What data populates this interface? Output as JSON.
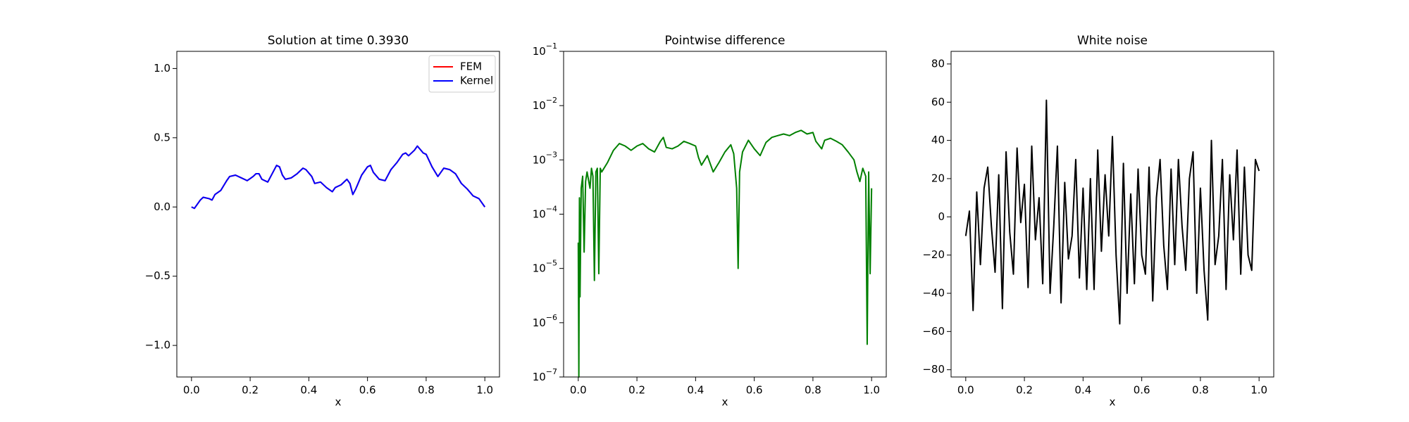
{
  "chart_data": [
    {
      "type": "line",
      "title": "Solution at time 0.3930",
      "xlabel": "x",
      "legend": "upper right",
      "x": [
        0,
        0.01,
        0.03,
        0.04,
        0.06,
        0.07,
        0.08,
        0.1,
        0.12,
        0.13,
        0.15,
        0.17,
        0.19,
        0.21,
        0.22,
        0.23,
        0.24,
        0.26,
        0.27,
        0.29,
        0.3,
        0.31,
        0.32,
        0.34,
        0.36,
        0.38,
        0.39,
        0.41,
        0.42,
        0.44,
        0.46,
        0.48,
        0.49,
        0.51,
        0.53,
        0.54,
        0.55,
        0.56,
        0.58,
        0.6,
        0.61,
        0.62,
        0.64,
        0.66,
        0.68,
        0.7,
        0.72,
        0.73,
        0.74,
        0.76,
        0.77,
        0.79,
        0.8,
        0.82,
        0.84,
        0.86,
        0.88,
        0.9,
        0.92,
        0.94,
        0.96,
        0.98,
        1
      ],
      "series": [
        {
          "name": "FEM",
          "color": "#ff0000",
          "values": [
            0,
            -0.01,
            0.05,
            0.07,
            0.06,
            0.05,
            0.09,
            0.12,
            0.19,
            0.22,
            0.23,
            0.21,
            0.19,
            0.22,
            0.24,
            0.24,
            0.2,
            0.18,
            0.22,
            0.3,
            0.29,
            0.23,
            0.2,
            0.21,
            0.24,
            0.28,
            0.27,
            0.22,
            0.17,
            0.18,
            0.14,
            0.11,
            0.14,
            0.16,
            0.2,
            0.17,
            0.09,
            0.13,
            0.23,
            0.29,
            0.3,
            0.25,
            0.2,
            0.19,
            0.27,
            0.32,
            0.38,
            0.39,
            0.37,
            0.41,
            0.44,
            0.39,
            0.38,
            0.29,
            0.22,
            0.28,
            0.27,
            0.24,
            0.17,
            0.13,
            0.08,
            0.06,
            0
          ]
        },
        {
          "name": "Kernel",
          "color": "#0000ff",
          "values": [
            0,
            -0.01,
            0.05,
            0.07,
            0.06,
            0.05,
            0.09,
            0.12,
            0.19,
            0.22,
            0.23,
            0.21,
            0.19,
            0.22,
            0.24,
            0.24,
            0.2,
            0.18,
            0.22,
            0.3,
            0.29,
            0.23,
            0.2,
            0.21,
            0.24,
            0.28,
            0.27,
            0.22,
            0.17,
            0.18,
            0.14,
            0.11,
            0.14,
            0.16,
            0.2,
            0.17,
            0.09,
            0.13,
            0.23,
            0.29,
            0.3,
            0.25,
            0.2,
            0.19,
            0.27,
            0.32,
            0.38,
            0.39,
            0.37,
            0.41,
            0.44,
            0.39,
            0.38,
            0.29,
            0.22,
            0.28,
            0.27,
            0.24,
            0.17,
            0.13,
            0.08,
            0.06,
            0
          ]
        }
      ],
      "xlim": [
        -0.05,
        1.05
      ],
      "ylim": [
        -1.228,
        1.124
      ],
      "xticks": [
        {
          "value": 0,
          "label": "0.0"
        },
        0.2,
        0.4,
        0.6,
        0.8,
        {
          "value": 1,
          "label": "1.0"
        }
      ],
      "yticks": [
        {
          "value": -1,
          "label": "−1.0"
        },
        {
          "value": -0.5,
          "label": "−0.5"
        },
        {
          "value": 0,
          "label": "0.0"
        },
        0.5,
        {
          "value": 1,
          "label": "1.0"
        }
      ]
    },
    {
      "type": "line",
      "title": "Pointwise difference",
      "xlabel": "x",
      "yscale": "log",
      "x": [
        0,
        0.002,
        0.004,
        0.006,
        0.01,
        0.015,
        0.02,
        0.025,
        0.03,
        0.04,
        0.045,
        0.05,
        0.055,
        0.06,
        0.065,
        0.07,
        0.075,
        0.08,
        0.1,
        0.12,
        0.14,
        0.16,
        0.18,
        0.2,
        0.22,
        0.24,
        0.26,
        0.28,
        0.29,
        0.3,
        0.32,
        0.34,
        0.36,
        0.38,
        0.4,
        0.41,
        0.42,
        0.44,
        0.46,
        0.48,
        0.5,
        0.52,
        0.53,
        0.54,
        0.545,
        0.55,
        0.56,
        0.58,
        0.6,
        0.62,
        0.64,
        0.66,
        0.68,
        0.7,
        0.72,
        0.74,
        0.76,
        0.78,
        0.8,
        0.81,
        0.83,
        0.84,
        0.86,
        0.88,
        0.9,
        0.92,
        0.94,
        0.95,
        0.96,
        0.97,
        0.98,
        0.985,
        0.99,
        0.995,
        1
      ],
      "series": [
        {
          "color": "#008000",
          "values": [
            3e-05,
            1e-07,
            0.0002,
            3e-06,
            0.0003,
            0.0005,
            2e-05,
            0.0004,
            0.0006,
            0.0003,
            0.0007,
            0.0005,
            6e-06,
            0.0006,
            0.0007,
            8e-06,
            0.0007,
            0.0006,
            0.0009,
            0.0015,
            0.002,
            0.0018,
            0.0015,
            0.0018,
            0.002,
            0.0016,
            0.0014,
            0.0022,
            0.0026,
            0.0017,
            0.0016,
            0.0018,
            0.0022,
            0.002,
            0.0018,
            0.0011,
            0.0008,
            0.0012,
            0.0006,
            0.0009,
            0.0014,
            0.0019,
            0.0013,
            0.0003,
            1e-05,
            0.0006,
            0.0014,
            0.0023,
            0.0016,
            0.0012,
            0.0021,
            0.0026,
            0.0028,
            0.003,
            0.0028,
            0.0032,
            0.0035,
            0.003,
            0.0032,
            0.0022,
            0.0016,
            0.0023,
            0.0025,
            0.0022,
            0.0019,
            0.0014,
            0.001,
            0.0006,
            0.0004,
            0.0007,
            0.0005,
            4e-07,
            0.0006,
            8e-06,
            0.0003
          ]
        }
      ],
      "xlim": [
        -0.05,
        1.05
      ],
      "ylim": [
        1e-07,
        0.1
      ],
      "xticks": [
        {
          "value": 0,
          "label": "0.0"
        },
        0.2,
        0.4,
        0.6,
        0.8,
        {
          "value": 1,
          "label": "1.0"
        }
      ],
      "yticks": [
        {
          "value": 1e-07,
          "label": "10−7"
        },
        {
          "value": 1e-06,
          "label": "10−6"
        },
        {
          "value": 1e-05,
          "label": "10−5"
        },
        {
          "value": 0.0001,
          "label": "10−4"
        },
        {
          "value": 0.001,
          "label": "10−3"
        },
        {
          "value": 0.01,
          "label": "10−2"
        },
        {
          "value": 0.1,
          "label": "10−1"
        }
      ]
    },
    {
      "type": "line",
      "title": "White noise",
      "xlabel": "x",
      "x": [
        0,
        0.0125,
        0.025,
        0.0375,
        0.05,
        0.0625,
        0.075,
        0.0875,
        0.1,
        0.1125,
        0.125,
        0.1375,
        0.15,
        0.1625,
        0.175,
        0.1875,
        0.2,
        0.2125,
        0.225,
        0.2375,
        0.25,
        0.2625,
        0.275,
        0.2875,
        0.3,
        0.3125,
        0.325,
        0.3375,
        0.35,
        0.3625,
        0.375,
        0.3875,
        0.4,
        0.4125,
        0.425,
        0.4375,
        0.45,
        0.4625,
        0.475,
        0.4875,
        0.5,
        0.5125,
        0.525,
        0.5375,
        0.55,
        0.5625,
        0.575,
        0.5875,
        0.6,
        0.6125,
        0.625,
        0.6375,
        0.65,
        0.6625,
        0.675,
        0.6875,
        0.7,
        0.7125,
        0.725,
        0.7375,
        0.75,
        0.7625,
        0.775,
        0.7875,
        0.8,
        0.8125,
        0.825,
        0.8375,
        0.85,
        0.8625,
        0.875,
        0.8875,
        0.9,
        0.9125,
        0.925,
        0.9375,
        0.95,
        0.9625,
        0.975,
        0.9875,
        1
      ],
      "series": [
        {
          "color": "#000000",
          "values": [
            -10,
            3,
            -49,
            13,
            -25,
            15,
            26,
            -5,
            -29,
            22,
            -48,
            34,
            -8,
            -30,
            36,
            -3,
            17,
            -37,
            37,
            -12,
            10,
            -35,
            61,
            -40,
            -5,
            37,
            -45,
            18,
            -22,
            -10,
            30,
            -32,
            15,
            -38,
            20,
            -38,
            35,
            -18,
            22,
            -10,
            42,
            -20,
            -56,
            28,
            -40,
            12,
            -35,
            25,
            -20,
            -30,
            26,
            -44,
            10,
            30,
            -15,
            -38,
            25,
            -25,
            30,
            -5,
            -28,
            20,
            34,
            -40,
            15,
            -28,
            -54,
            40,
            -25,
            -10,
            30,
            -38,
            22,
            -12,
            35,
            -30,
            26,
            -20,
            -28,
            30,
            24
          ]
        }
      ],
      "xlim": [
        -0.05,
        1.05
      ],
      "ylim": [
        -83.8,
        86.6
      ],
      "xticks": [
        {
          "value": 0,
          "label": "0.0"
        },
        0.2,
        0.4,
        0.6,
        0.8,
        {
          "value": 1,
          "label": "1.0"
        }
      ],
      "yticks": [
        {
          "value": -80,
          "label": "−80"
        },
        {
          "value": -60,
          "label": "−60"
        },
        {
          "value": -40,
          "label": "−40"
        },
        {
          "value": -20,
          "label": "−20"
        },
        0,
        20,
        40,
        60,
        80
      ]
    }
  ]
}
